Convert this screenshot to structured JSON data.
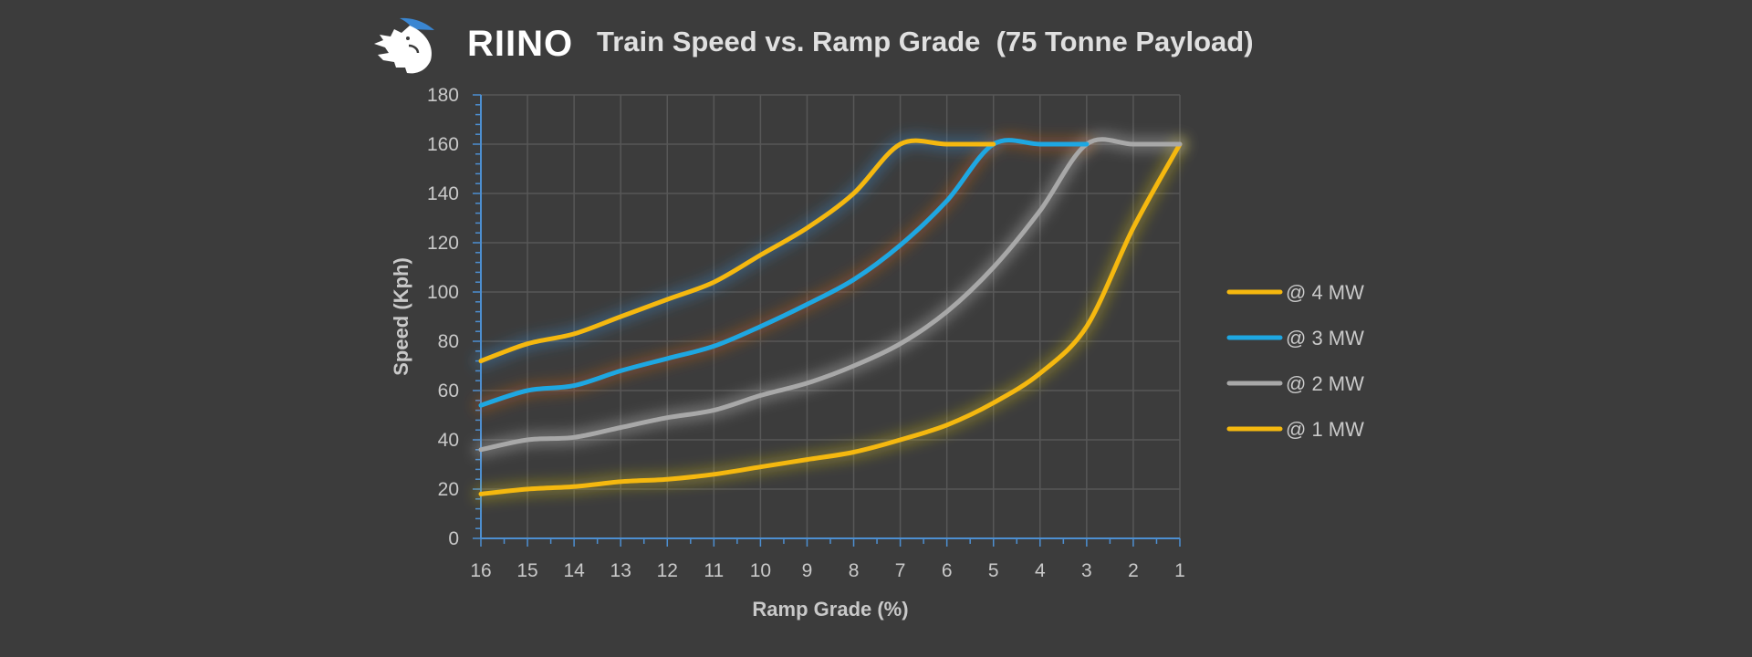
{
  "logo": {
    "text": "RIINO"
  },
  "chart_data": {
    "type": "line",
    "title": "Train Speed vs. Ramp Grade  (75 Tonne Payload)",
    "xlabel": "Ramp Grade (%)",
    "ylabel": "Speed (Kph)",
    "x": [
      16,
      15,
      14,
      13,
      12,
      11,
      10,
      9,
      8,
      7,
      6,
      5,
      4,
      3,
      2,
      1
    ],
    "x_reversed": true,
    "xlim": [
      16,
      1
    ],
    "ylim": [
      0,
      180
    ],
    "yticks": [
      0,
      20,
      40,
      60,
      80,
      100,
      120,
      140,
      160,
      180
    ],
    "grid": true,
    "legend_position": "right",
    "series": [
      {
        "name": "@ 4 MW",
        "color": "#f5b80f",
        "glow": "#3f8fd6",
        "values": [
          72,
          79,
          83,
          90,
          97,
          104,
          115,
          126,
          140,
          160,
          160,
          160,
          null,
          null,
          null,
          null
        ]
      },
      {
        "name": "@ 3 MW",
        "color": "#1ea7e2",
        "glow": "#d2621e",
        "values": [
          54,
          60,
          62,
          68,
          73,
          78,
          86,
          95,
          105,
          119,
          137,
          160,
          160,
          160,
          null,
          null
        ]
      },
      {
        "name": "@ 2 MW",
        "color": "#a8a8a8",
        "glow": "#d0d0d0",
        "values": [
          36,
          40,
          41,
          45,
          49,
          52,
          58,
          63,
          70,
          79,
          92,
          110,
          133,
          160,
          160,
          160
        ]
      },
      {
        "name": "@ 1 MW",
        "color": "#f5b80f",
        "glow": "#d8c21a",
        "values": [
          18,
          20,
          21,
          23,
          24,
          26,
          29,
          32,
          35,
          40,
          46,
          55,
          67,
          86,
          126,
          160
        ]
      }
    ]
  }
}
